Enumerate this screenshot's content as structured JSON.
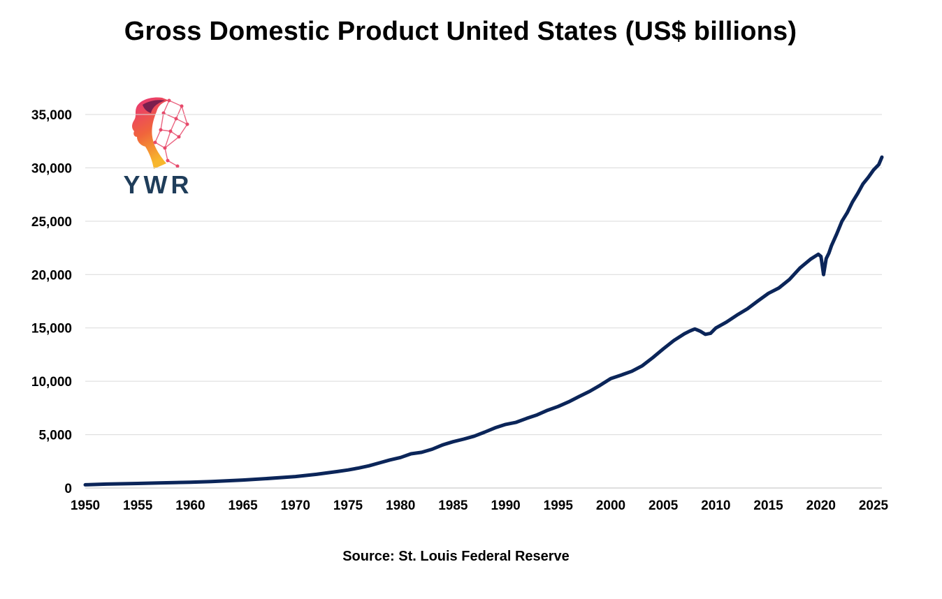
{
  "chart_data": {
    "type": "line",
    "title": "Gross Domestic Product United States (US$ billions)",
    "xlabel": "",
    "ylabel": "",
    "source": "Source: St. Louis Federal Reserve",
    "xlim": [
      1950,
      2025.8
    ],
    "ylim": [
      0,
      35000
    ],
    "x_ticks": [
      1950,
      1955,
      1960,
      1965,
      1970,
      1975,
      1980,
      1985,
      1990,
      1995,
      2000,
      2005,
      2010,
      2015,
      2020,
      2025
    ],
    "y_ticks": [
      0,
      5000,
      10000,
      15000,
      20000,
      25000,
      30000,
      35000
    ],
    "y_tick_labels": [
      "0",
      "5,000",
      "10,000",
      "15,000",
      "20,000",
      "25,000",
      "30,000",
      "35,000"
    ],
    "grid": "horizontal",
    "line_color": "#0b2559",
    "series": [
      {
        "name": "GDP",
        "x": [
          1950,
          1952,
          1955,
          1957,
          1960,
          1962,
          1965,
          1967,
          1970,
          1972,
          1974,
          1975,
          1976,
          1977,
          1978,
          1979,
          1980,
          1981,
          1982,
          1983,
          1984,
          1985,
          1986,
          1987,
          1988,
          1989,
          1990,
          1991,
          1992,
          1993,
          1994,
          1995,
          1996,
          1997,
          1998,
          1999,
          2000,
          2001,
          2002,
          2003,
          2004,
          2005,
          2006,
          2007,
          2007.5,
          2008,
          2008.5,
          2009,
          2009.5,
          2010,
          2011,
          2012,
          2013,
          2014,
          2015,
          2016,
          2017,
          2018,
          2019,
          2019.75,
          2020,
          2020.25,
          2020.5,
          2020.75,
          2021,
          2021.5,
          2022,
          2022.5,
          2023,
          2023.5,
          2024,
          2024.5,
          2025,
          2025.5,
          2025.8
        ],
        "values": [
          300,
          368,
          426,
          474,
          541,
          603,
          743,
          862,
          1073,
          1280,
          1546,
          1685,
          1873,
          2082,
          2352,
          2627,
          2857,
          3207,
          3343,
          3634,
          4037,
          4339,
          4580,
          4855,
          5236,
          5642,
          5963,
          6158,
          6520,
          6859,
          7287,
          7640,
          8073,
          8577,
          9063,
          9631,
          10252,
          10582,
          10936,
          11458,
          12214,
          13037,
          13815,
          14452,
          14700,
          14900,
          14700,
          14400,
          14500,
          14992,
          15543,
          16197,
          16785,
          17527,
          18238,
          18745,
          19543,
          20612,
          21433,
          21900,
          21700,
          20000,
          21500,
          22000,
          22700,
          23800,
          25000,
          25800,
          26800,
          27600,
          28500,
          29100,
          29800,
          30300,
          31000
        ]
      }
    ]
  },
  "logo": {
    "text": "YWR"
  }
}
